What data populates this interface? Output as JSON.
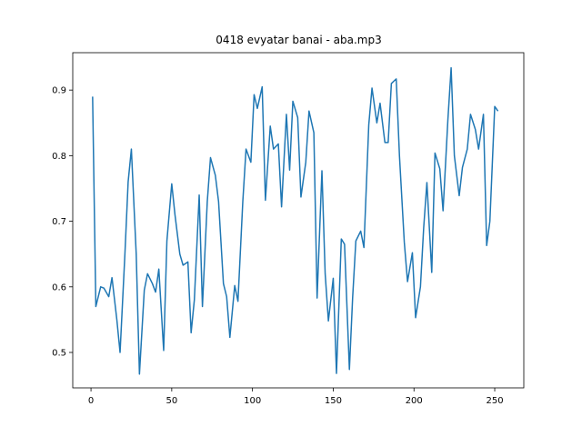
{
  "chart_data": {
    "type": "line",
    "title": "0418 evyatar banai - aba.mp3",
    "x": [
      1,
      3,
      6,
      8,
      11,
      13,
      16,
      18,
      21,
      23,
      25,
      28,
      30,
      33,
      35,
      38,
      40,
      42,
      45,
      47,
      50,
      52,
      55,
      57,
      60,
      62,
      64,
      67,
      69,
      72,
      74,
      77,
      79,
      82,
      84,
      86,
      89,
      91,
      94,
      96,
      99,
      101,
      103,
      106,
      108,
      111,
      113,
      116,
      118,
      121,
      123,
      125,
      128,
      130,
      133,
      135,
      138,
      140,
      143,
      145,
      147,
      150,
      152,
      155,
      157,
      160,
      162,
      164,
      167,
      169,
      172,
      174,
      177,
      179,
      182,
      184,
      186,
      189,
      191,
      194,
      196,
      199,
      201,
      204,
      206,
      208,
      211,
      213,
      216,
      218,
      221,
      223,
      225,
      228,
      230,
      233,
      235,
      238,
      240,
      243,
      245,
      247,
      250,
      252
    ],
    "series": [
      {
        "color": "#1f77b4",
        "values": [
          0.89,
          0.57,
          0.6,
          0.598,
          0.585,
          0.614,
          0.55,
          0.5,
          0.65,
          0.76,
          0.81,
          0.65,
          0.467,
          0.595,
          0.62,
          0.605,
          0.592,
          0.627,
          0.503,
          0.67,
          0.757,
          0.71,
          0.65,
          0.633,
          0.638,
          0.53,
          0.58,
          0.74,
          0.57,
          0.73,
          0.797,
          0.77,
          0.73,
          0.605,
          0.585,
          0.523,
          0.602,
          0.578,
          0.73,
          0.81,
          0.79,
          0.893,
          0.872,
          0.905,
          0.732,
          0.845,
          0.81,
          0.818,
          0.722,
          0.863,
          0.778,
          0.883,
          0.858,
          0.737,
          0.79,
          0.868,
          0.835,
          0.583,
          0.777,
          0.62,
          0.548,
          0.613,
          0.468,
          0.673,
          0.665,
          0.474,
          0.583,
          0.67,
          0.685,
          0.66,
          0.847,
          0.903,
          0.85,
          0.88,
          0.82,
          0.82,
          0.91,
          0.917,
          0.8,
          0.668,
          0.608,
          0.652,
          0.553,
          0.6,
          0.69,
          0.759,
          0.622,
          0.804,
          0.78,
          0.716,
          0.855,
          0.934,
          0.8,
          0.739,
          0.782,
          0.81,
          0.863,
          0.84,
          0.81,
          0.863,
          0.663,
          0.7,
          0.875,
          0.868
        ]
      }
    ],
    "xlim": [
      -11.3,
      268
    ],
    "ylim": [
      0.446,
      0.957
    ],
    "xticks": [
      0,
      50,
      100,
      150,
      200,
      250
    ],
    "yticks": [
      0.5,
      0.6,
      0.7,
      0.8,
      0.9
    ]
  }
}
